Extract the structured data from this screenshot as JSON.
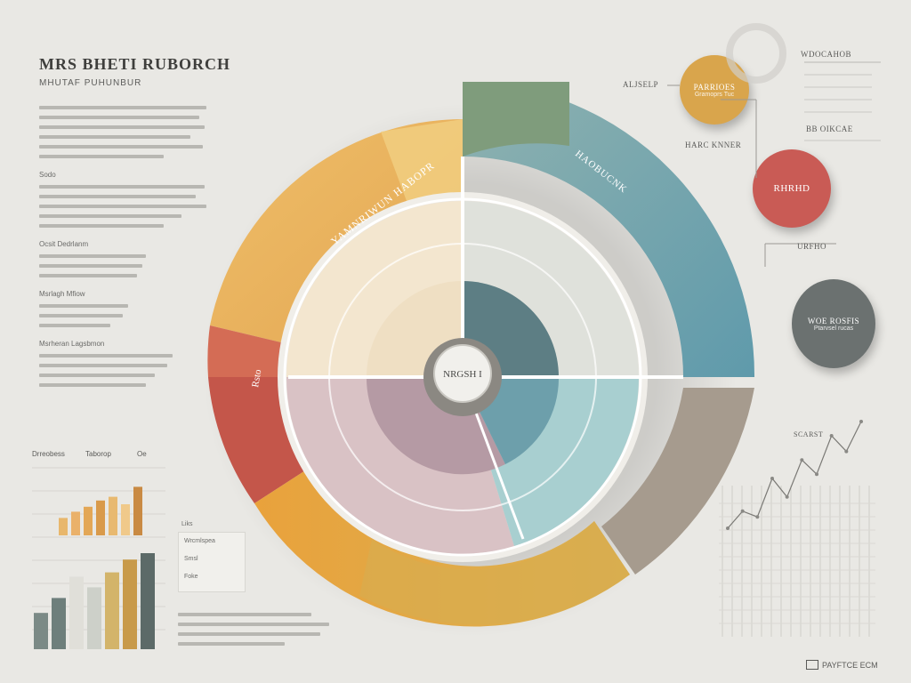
{
  "header": {
    "title": "MRS BHETI RUBORCH",
    "subtitle": "MHUTAF PUHUNBUR"
  },
  "left_text_blocks": [
    {
      "label": "",
      "lines": 6
    },
    {
      "label": "Sodo",
      "lines": 5
    },
    {
      "label": "Ocsit Dedrlanm",
      "lines": 3
    },
    {
      "label": "Msrlagh  Mfiow",
      "lines": 3
    },
    {
      "label": "Msrheran  Lagsbmon",
      "lines": 4
    }
  ],
  "bar_chart": {
    "labels": [
      "Drreobess",
      "Taborop",
      "Oe"
    ],
    "values_back": [
      0.28,
      0.38,
      0.46,
      0.56,
      0.62,
      0.5,
      0.78
    ],
    "values_front": [
      0.34,
      0.48,
      0.68,
      0.58,
      0.72,
      0.84,
      0.9
    ]
  },
  "legend": {
    "header": "Liks",
    "rows": [
      "Wrcmlspea",
      "Smsl",
      "Foke"
    ]
  },
  "bottom_text": {
    "lines": 4
  },
  "wheel": {
    "outer_segments": [
      {
        "label": "YAMNRIWUN HABOPR",
        "color": "#eab35d"
      },
      {
        "label": "HAOBUCNK",
        "color": "#77a8b3"
      },
      {
        "label": "Rsto",
        "color": "#c9574a"
      }
    ],
    "center_label": "NRGSH I"
  },
  "right_bubbles": [
    {
      "label": "PARRIOES",
      "sub": "Gramoprs Tuc",
      "color": "#d9a54c"
    },
    {
      "label": "RHRHD",
      "sub": "",
      "color": "#c95b55"
    },
    {
      "label": "WOE ROSFIS",
      "sub": "Ptarvsel rucas",
      "color": "#6b7170"
    }
  ],
  "right_labels": {
    "top": "WDOCAHOB",
    "mid": "BB OIKCAE",
    "left_bubble": "ALJSELP",
    "below_bubble": "HARC KNNER",
    "line_chart_label": "SCARST",
    "red_bubble_tag": "URFHO"
  },
  "line_chart": {
    "values": [
      0.2,
      0.32,
      0.28,
      0.55,
      0.42,
      0.68,
      0.58,
      0.85,
      0.74,
      0.95
    ]
  },
  "footer": {
    "label": "PAYFTCE ECM"
  }
}
